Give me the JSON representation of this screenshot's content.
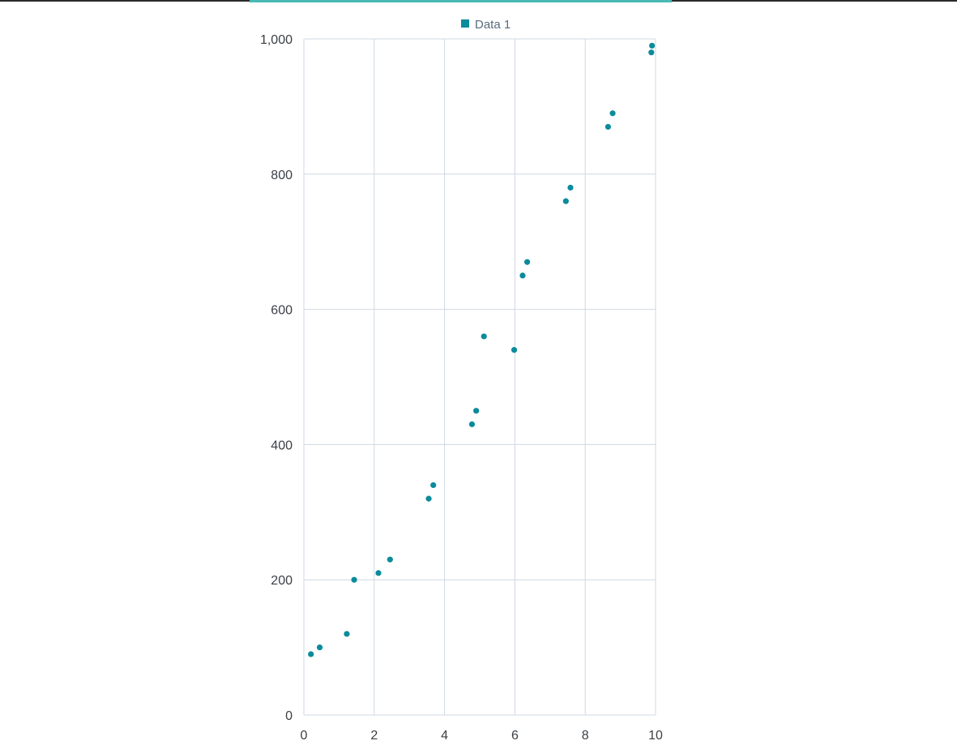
{
  "chart_data": {
    "type": "scatter",
    "title": "",
    "xlabel": "",
    "ylabel": "",
    "xlim": [
      0,
      10
    ],
    "ylim": [
      0,
      1000
    ],
    "x_ticks": [
      0,
      2,
      4,
      6,
      8,
      10
    ],
    "y_ticks": [
      0,
      200,
      400,
      600,
      800,
      1000
    ],
    "x_tick_labels": [
      "0",
      "2",
      "4",
      "6",
      "8",
      "10"
    ],
    "y_tick_labels": [
      "0",
      "200",
      "400",
      "600",
      "800",
      "1,000"
    ],
    "grid": true,
    "legend_position": "top-center",
    "series": [
      {
        "name": "Data 1",
        "color": "#0b8b9b",
        "points": [
          [
            0.2,
            90
          ],
          [
            0.45,
            100
          ],
          [
            1.22,
            120
          ],
          [
            1.43,
            200
          ],
          [
            2.12,
            210
          ],
          [
            2.45,
            230
          ],
          [
            3.55,
            320
          ],
          [
            3.68,
            340
          ],
          [
            4.78,
            430
          ],
          [
            4.9,
            450
          ],
          [
            5.12,
            560
          ],
          [
            5.98,
            540
          ],
          [
            6.22,
            650
          ],
          [
            6.35,
            670
          ],
          [
            7.45,
            760
          ],
          [
            7.58,
            780
          ],
          [
            8.65,
            870
          ],
          [
            8.78,
            890
          ],
          [
            9.88,
            980
          ],
          [
            9.9,
            990
          ]
        ]
      }
    ]
  },
  "colors": {
    "grid": "#cfd8e3",
    "axis_text": "#3a3f44",
    "legend_text": "#5a6b7b",
    "top_bar": "#2b2b2b",
    "top_accent": "#49b9b3"
  }
}
